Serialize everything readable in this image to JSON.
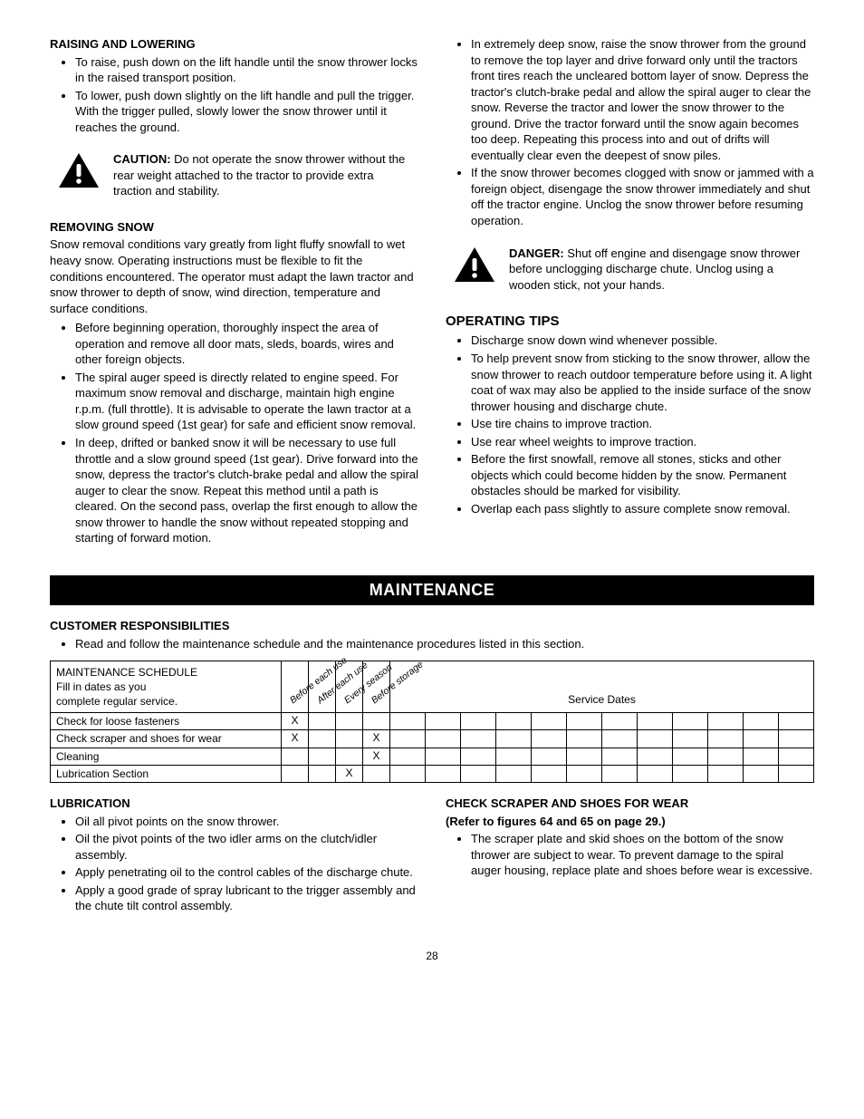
{
  "col_left": {
    "raising": {
      "title": "RAISING AND LOWERING",
      "items": [
        "To raise, push down on the lift handle until the snow thrower locks in the raised transport position.",
        "To lower, push down slightly on the lift handle and pull the trigger. With the trigger pulled, slowly lower the snow thrower until it reaches the ground."
      ]
    },
    "caution": {
      "label": "CAUTION:",
      "text": "Do not operate the snow thrower without the rear weight attached to the tractor to provide extra traction and stability."
    },
    "removing": {
      "title": "REMOVING SNOW",
      "intro": "Snow removal conditions vary greatly from light fluffy snowfall to wet heavy snow. Operating instructions must be flexible to fit the conditions encountered. The operator must adapt the lawn tractor and snow thrower to depth of snow, wind direction, temperature and surface conditions.",
      "items": [
        "Before beginning operation, thoroughly inspect the area of operation and remove all door mats, sleds, boards, wires and other foreign objects.",
        "The spiral auger speed is directly related to engine speed. For maximum snow removal and discharge, maintain high engine r.p.m. (full throttle). It is advisable to operate the lawn tractor at a slow ground speed (1st gear) for safe and efficient snow removal.",
        "In deep, drifted or banked snow it will be necessary to use full throttle and a slow ground speed (1st gear). Drive forward into the snow, depress the tractor's clutch-brake pedal and allow the spiral auger to clear the snow. Repeat this method until a path is cleared. On the second pass, overlap the first enough to allow the snow thrower to handle the snow without repeated stopping and starting of forward motion."
      ]
    }
  },
  "col_right": {
    "top_items": [
      "In extremely deep snow, raise the snow thrower from the ground to remove the top layer and drive forward only until the tractors front tires reach the uncleared bottom layer of snow. Depress the tractor's clutch-brake pedal and allow the spiral auger to clear the snow. Reverse the tractor and lower the snow thrower to the ground. Drive the tractor forward until the snow again becomes too deep. Repeating this process into and out of drifts will eventually clear even the deepest of snow piles.",
      "If the snow thrower becomes clogged with snow or jammed with a foreign object, disengage the snow thrower immediately and shut off the tractor engine. Unclog the snow thrower before resuming operation."
    ],
    "danger": {
      "label": "DANGER:",
      "text": "Shut off engine and disengage snow thrower before unclogging discharge chute. Unclog using a wooden stick, not your hands."
    },
    "tips": {
      "title": "OPERATING TIPS",
      "items": [
        "Discharge snow down wind whenever possible.",
        "To help prevent snow from sticking to the snow thrower, allow the snow thrower to reach outdoor temperature before using it. A light coat of wax may also be applied to the inside surface of the snow thrower housing and discharge chute.",
        "Use tire chains to improve traction.",
        "Use rear wheel weights to improve traction.",
        "Before the first snowfall, remove all stones, sticks and other objects which could become hidden by the snow. Permanent obstacles should be marked for visibility.",
        "Overlap each pass slightly to assure complete snow removal."
      ]
    }
  },
  "maintenance": {
    "banner": "MAINTENANCE",
    "cust_title": "CUSTOMER RESPONSIBILITIES",
    "cust_item": "Read and follow the maintenance schedule and the maintenance procedures listed in this section.",
    "schedule": {
      "head_left_1": "MAINTENANCE SCHEDULE",
      "head_left_2": "Fill in dates as you",
      "head_left_3": "complete regular service.",
      "diag": [
        "Before each use",
        "After each use",
        "Every season",
        "Before storage"
      ],
      "service_dates": "Service Dates",
      "rows": [
        {
          "label": "Check for loose fasteners",
          "marks": [
            "X",
            "",
            "",
            ""
          ]
        },
        {
          "label": "Check scraper and shoes for wear",
          "marks": [
            "X",
            "",
            "",
            "X"
          ]
        },
        {
          "label": "Cleaning",
          "marks": [
            "",
            "",
            "",
            "X"
          ]
        },
        {
          "label": "Lubrication Section",
          "marks": [
            "",
            "",
            "X",
            ""
          ]
        }
      ],
      "svc_cols": 12
    },
    "lubrication": {
      "title": "LUBRICATION",
      "items": [
        "Oil all pivot points on the snow thrower.",
        "Oil the pivot points of the two idler arms on the clutch/idler assembly.",
        "Apply penetrating oil to the control cables of the discharge chute.",
        "Apply a good grade of spray lubricant to the trigger assembly and the chute tilt control assembly."
      ]
    },
    "scraper": {
      "title": "CHECK SCRAPER AND SHOES FOR WEAR",
      "subtitle": "(Refer to figures 64 and 65 on page 29.)",
      "item": "The scraper plate and skid shoes on the bottom of the snow thrower are subject to wear. To prevent damage to the spiral auger housing, replace plate and shoes before wear is excessive."
    }
  },
  "page_number": "28"
}
